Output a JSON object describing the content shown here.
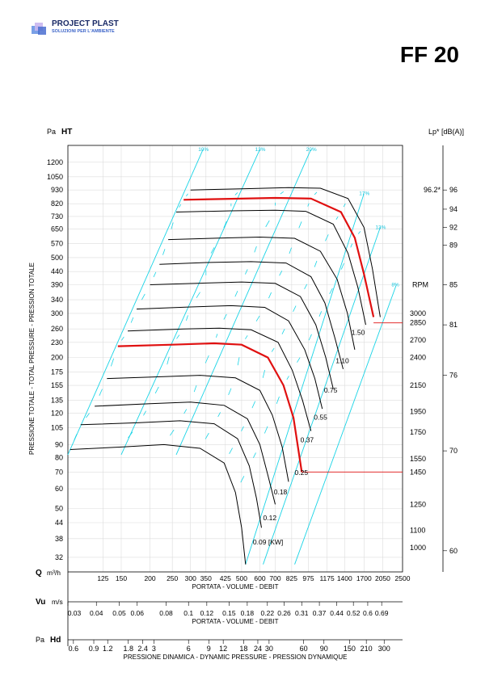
{
  "brand": {
    "name": "PROJECT PLAST",
    "tagline": "SOLUZIONI PER L'AMBIENTE"
  },
  "model": "FF 20",
  "chart_data": {
    "type": "line",
    "y_axis": {
      "unit": "Pa",
      "symbol": "HT",
      "label": "PRESSIONE TOTALE - TOTAL PRESSURE - PRESSION TOTALE",
      "scale": "log",
      "range": [
        28,
        1400
      ],
      "ticks": [
        1200,
        1050,
        930,
        820,
        730,
        650,
        570,
        500,
        440,
        390,
        340,
        300,
        260,
        230,
        200,
        175,
        155,
        135,
        120,
        105,
        90,
        80,
        70,
        60,
        50,
        44,
        38,
        32
      ]
    },
    "x_axis": {
      "symbol": "Q",
      "unit": "m³/h",
      "label": "PORTATA - VOLUME - DEBIT",
      "scale": "log",
      "range": [
        88,
        2500
      ],
      "ticks": [
        125,
        150,
        200,
        250,
        300,
        350,
        425,
        500,
        600,
        700,
        825,
        975,
        1175,
        1400,
        1700,
        2050,
        2500
      ]
    },
    "velocity_axis": {
      "symbol": "Vu",
      "unit": "m/s",
      "label": "PORTATA - VOLUME - DEBIT",
      "ticks": [
        "0.03",
        "0.04",
        "0.05",
        "0.06",
        "0.08",
        "0.1",
        "0.12",
        "0.15",
        "0.18",
        "0.22",
        "0.26",
        "0.31",
        "0.37",
        "0.44",
        "0.52",
        "0.6",
        "0.69"
      ],
      "positions_q": [
        88,
        117,
        147,
        176,
        235,
        294,
        353,
        441,
        529,
        647,
        765,
        912,
        1088,
        1294,
        1529,
        1765,
        2029
      ]
    },
    "dynamic_pressure_axis": {
      "unit": "Pa",
      "symbol": "Hd",
      "label": "PRESSIONE DINAMICA - DYNAMIC PRESSURE - PRESSION DYNAMIQUE",
      "ticks": [
        "0.6",
        "0.9",
        "1.2",
        "1.8",
        "2.4",
        "3",
        "6",
        "9",
        "12",
        "18",
        "24",
        "30",
        "60",
        "90",
        "150",
        "210",
        "300"
      ],
      "positions_q": [
        93,
        114,
        131,
        161,
        186,
        208,
        294,
        360,
        416,
        510,
        588,
        658,
        930,
        1139,
        1471,
        1740,
        2080
      ]
    },
    "right_axis": {
      "label": "Lp* [dB(A)]",
      "ticks": [
        "96",
        "94",
        "92",
        "89",
        "85",
        "81",
        "76",
        "70",
        "60"
      ],
      "tick_pa": [
        930,
        780,
        660,
        560,
        390,
        270,
        170,
        85,
        34
      ],
      "marker": "96.2*",
      "marker_pa": 930
    },
    "rpm_axis": {
      "label": "RPM",
      "ticks": [
        "3000",
        "2850",
        "2700",
        "2400",
        "2150",
        "1950",
        "1750",
        "1550",
        "1450",
        "1250",
        "1100",
        "1000"
      ],
      "tick_pa": [
        300,
        275,
        235,
        200,
        155,
        122,
        101,
        79,
        70,
        52,
        41,
        35
      ]
    },
    "speed_curves": [
      {
        "rpm": 3000,
        "points": [
          [
            300,
            930
          ],
          [
            500,
            940
          ],
          [
            800,
            950
          ],
          [
            1100,
            945
          ],
          [
            1450,
            860
          ],
          [
            1700,
            660
          ],
          [
            1850,
            450
          ],
          [
            2000,
            290
          ]
        ]
      },
      {
        "rpm": 2850,
        "points": [
          [
            280,
            850
          ],
          [
            450,
            858
          ],
          [
            700,
            865
          ],
          [
            1000,
            860
          ],
          [
            1350,
            760
          ],
          [
            1550,
            600
          ],
          [
            1700,
            430
          ],
          [
            1870,
            290
          ]
        ]
      },
      {
        "rpm": 2700,
        "points": [
          [
            260,
            760
          ],
          [
            450,
            768
          ],
          [
            700,
            772
          ],
          [
            950,
            765
          ],
          [
            1250,
            680
          ],
          [
            1450,
            520
          ],
          [
            1600,
            380
          ],
          [
            1730,
            270
          ]
        ]
      },
      {
        "rpm": 2400,
        "points": [
          [
            240,
            590
          ],
          [
            400,
            598
          ],
          [
            600,
            604
          ],
          [
            850,
            597
          ],
          [
            1100,
            530
          ],
          [
            1300,
            410
          ],
          [
            1440,
            300
          ],
          [
            1550,
            215
          ]
        ]
      },
      {
        "rpm": 2150,
        "points": [
          [
            220,
            470
          ],
          [
            350,
            478
          ],
          [
            550,
            482
          ],
          [
            780,
            476
          ],
          [
            1000,
            420
          ],
          [
            1150,
            330
          ],
          [
            1270,
            240
          ],
          [
            1380,
            180
          ]
        ]
      },
      {
        "rpm": 1950,
        "points": [
          [
            200,
            390
          ],
          [
            350,
            396
          ],
          [
            500,
            400
          ],
          [
            700,
            395
          ],
          [
            900,
            350
          ],
          [
            1050,
            270
          ],
          [
            1160,
            200
          ],
          [
            1250,
            150
          ]
        ]
      },
      {
        "rpm": 1750,
        "points": [
          [
            175,
            312
          ],
          [
            300,
            318
          ],
          [
            450,
            322
          ],
          [
            630,
            317
          ],
          [
            800,
            280
          ],
          [
            940,
            215
          ],
          [
            1040,
            165
          ],
          [
            1120,
            125
          ]
        ]
      },
      {
        "rpm": 1550,
        "points": [
          [
            160,
            255
          ],
          [
            280,
            260
          ],
          [
            400,
            262
          ],
          [
            550,
            258
          ],
          [
            720,
            230
          ],
          [
            830,
            178
          ],
          [
            920,
            135
          ],
          [
            1000,
            102
          ]
        ]
      },
      {
        "rpm": 1450,
        "points": [
          [
            145,
            222
          ],
          [
            250,
            225
          ],
          [
            380,
            228
          ],
          [
            500,
            225
          ],
          [
            650,
            200
          ],
          [
            760,
            155
          ],
          [
            840,
            115
          ],
          [
            912,
            70
          ]
        ]
      },
      {
        "rpm": 1250,
        "points": [
          [
            130,
            165
          ],
          [
            230,
            168
          ],
          [
            330,
            170
          ],
          [
            470,
            166
          ],
          [
            600,
            148
          ],
          [
            680,
            118
          ],
          [
            750,
            88
          ],
          [
            800,
            64
          ]
        ]
      },
      {
        "rpm": 1100,
        "points": [
          [
            115,
            128
          ],
          [
            200,
            131
          ],
          [
            300,
            133
          ],
          [
            420,
            129
          ],
          [
            530,
            114
          ],
          [
            600,
            90
          ],
          [
            650,
            68
          ],
          [
            700,
            52
          ]
        ]
      },
      {
        "rpm": 1000,
        "points": [
          [
            100,
            108
          ],
          [
            180,
            110
          ],
          [
            270,
            112
          ],
          [
            380,
            109
          ],
          [
            480,
            95
          ],
          [
            540,
            74
          ],
          [
            580,
            55
          ],
          [
            610,
            42
          ]
        ]
      },
      {
        "rpm": 900,
        "points": [
          [
            90,
            86
          ],
          [
            150,
            88
          ],
          [
            230,
            90
          ],
          [
            330,
            87
          ],
          [
            420,
            76
          ],
          [
            470,
            58
          ],
          [
            500,
            42
          ],
          [
            520,
            30
          ]
        ]
      }
    ],
    "highlighted_curves": [
      {
        "rpm": 2850,
        "power": "1.50"
      },
      {
        "rpm": 1450,
        "power": "0.25"
      }
    ],
    "operating_lines_pa": [
      275,
      70
    ],
    "power_labels": [
      {
        "label": "1.50",
        "q": 1500,
        "pa": 246
      },
      {
        "label": "1.10",
        "q": 1280,
        "pa": 190
      },
      {
        "label": "0.75",
        "q": 1140,
        "pa": 145
      },
      {
        "label": "0.55",
        "q": 1030,
        "pa": 113
      },
      {
        "label": "0.37",
        "q": 900,
        "pa": 92
      },
      {
        "label": "0.25",
        "q": 850,
        "pa": 68
      },
      {
        "label": "0.18",
        "q": 690,
        "pa": 57
      },
      {
        "label": "0.12",
        "q": 620,
        "pa": 45
      },
      {
        "label": "0.09 [KW]",
        "q": 560,
        "pa": 36
      }
    ],
    "efficiency_lines": [
      {
        "label": "10%",
        "start": [
          88,
          82
        ],
        "end": [
          340,
          1350
        ]
      },
      {
        "label": "13%",
        "start": [
          150,
          82
        ],
        "end": [
          600,
          1350
        ]
      },
      {
        "label": "20%",
        "start": [
          260,
          82
        ],
        "end": [
          1000,
          1350
        ]
      },
      {
        "label": "17%",
        "start": [
          520,
          30
        ],
        "end": [
          1700,
          900
        ]
      },
      {
        "label": "13%",
        "start": [
          620,
          30
        ],
        "end": [
          2000,
          660
        ]
      },
      {
        "label": "8%",
        "start": [
          850,
          30
        ],
        "end": [
          2350,
          390
        ]
      }
    ]
  }
}
